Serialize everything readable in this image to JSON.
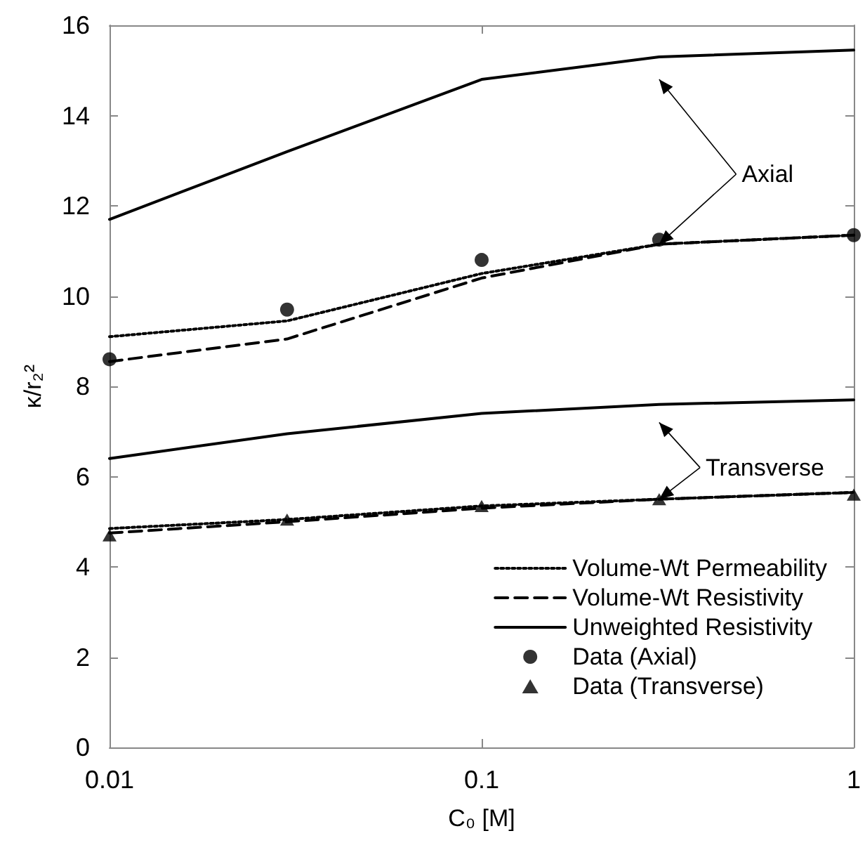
{
  "chart_data": {
    "type": "line",
    "xlabel": "C₀ [M]",
    "ylabel": "κ/r₂²",
    "log": "x",
    "xlim": [
      0.01,
      1
    ],
    "xticks": [
      0.01,
      0.1,
      1
    ],
    "ylim": [
      0,
      16
    ],
    "yticks": [
      0,
      2,
      4,
      6,
      8,
      10,
      12,
      14,
      16
    ],
    "grid": false,
    "legend": "bottom right",
    "marker": "none",
    "x": [
      0.01,
      0.03,
      0.1,
      0.3,
      1
    ],
    "annotations": [
      {
        "text": "Axial",
        "x": 0.3,
        "y": 11.15
      },
      {
        "text": "Transverse",
        "x": 0.3,
        "y": 5.5
      }
    ],
    "series": [
      {
        "name": "Volume-Wt Permeability",
        "color": "#000000",
        "line_style": "dotted",
        "values": [
          9.1,
          9.45,
          10.5,
          11.15,
          11.35
        ]
      },
      {
        "name": "Volume-Wt Resistivity",
        "color": "#000000",
        "line_style": "dashed",
        "values": [
          8.55,
          9.05,
          10.4,
          11.15,
          11.35
        ]
      },
      {
        "name": "Unweighted Resistivity",
        "color": "#000000",
        "line_style": "solid",
        "values": [
          11.7,
          13.2,
          14.8,
          15.3,
          15.45
        ]
      },
      {
        "name": "Data (Axial)",
        "type": "scatter",
        "marker": "circle",
        "color": "#000000",
        "values": [
          8.6,
          9.7,
          10.8,
          11.25,
          11.35
        ]
      },
      {
        "name": "Data (Transverse)",
        "type": "scatter",
        "marker": "triangle",
        "color": "#000000",
        "values": [
          4.7,
          5.05,
          5.35,
          5.5,
          5.6
        ]
      },
      {
        "color": "#000000",
        "line_style": "dotted",
        "values": [
          4.85,
          5.05,
          5.35,
          5.5,
          5.65
        ]
      },
      {
        "color": "#000000",
        "line_style": "dashed",
        "values": [
          4.75,
          5.0,
          5.3,
          5.5,
          5.65
        ]
      },
      {
        "color": "#000000",
        "line_style": "solid",
        "values": [
          6.4,
          6.95,
          7.4,
          7.6,
          7.7
        ]
      }
    ]
  }
}
